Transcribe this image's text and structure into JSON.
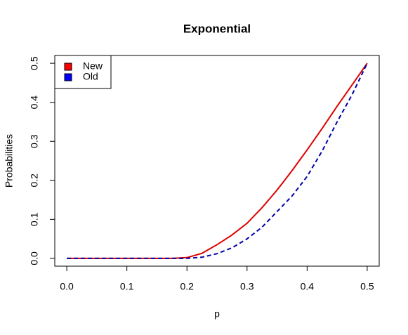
{
  "chart_data": {
    "type": "line",
    "title": "Exponential",
    "x_label": "p",
    "y_label": "Probabilities",
    "x": [
      0,
      0.025,
      0.05,
      0.075,
      0.1,
      0.125,
      0.15,
      0.175,
      0.2,
      0.225,
      0.25,
      0.275,
      0.3,
      0.325,
      0.35,
      0.375,
      0.4,
      0.425,
      0.45,
      0.475,
      0.5
    ],
    "series": [
      {
        "name": "New",
        "color": "#dd0000",
        "dash": "solid",
        "values": [
          0,
          0,
          0,
          0,
          0,
          0,
          0,
          0,
          0.002,
          0.013,
          0.035,
          0.06,
          0.09,
          0.13,
          0.175,
          0.225,
          0.278,
          0.333,
          0.39,
          0.445,
          0.5
        ]
      },
      {
        "name": "Old",
        "color": "#0000aa",
        "dash": "dashed",
        "values": [
          0,
          0,
          0,
          0,
          0,
          0,
          0,
          0,
          0,
          0.003,
          0.012,
          0.027,
          0.05,
          0.08,
          0.12,
          0.16,
          0.21,
          0.275,
          0.35,
          0.42,
          0.5
        ]
      }
    ],
    "legend_colors": [
      "#ff0000",
      "#0000ff"
    ],
    "xlim": [
      -0.02,
      0.52
    ],
    "ylim": [
      -0.02,
      0.52
    ],
    "xticks": [
      {
        "value": 0,
        "label": "0.0"
      },
      0.1,
      0.2,
      0.3,
      0.4,
      0.5
    ],
    "yticks": [
      {
        "value": 0,
        "label": "0.0"
      },
      0.1,
      0.2,
      0.3,
      0.4,
      0.5
    ],
    "legend": "top-left"
  }
}
